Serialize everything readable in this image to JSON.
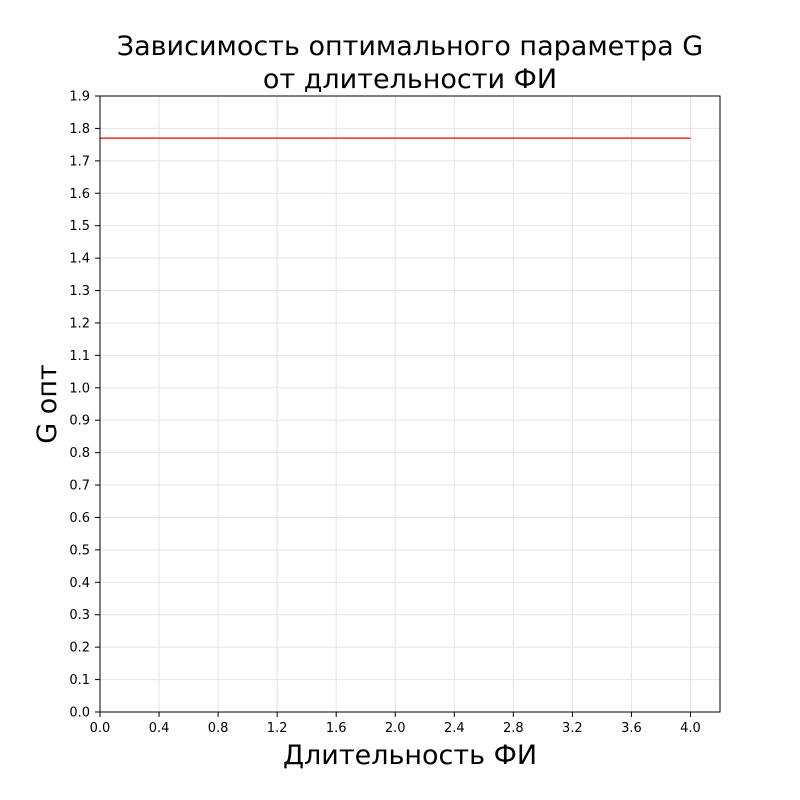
{
  "chart_data": {
    "type": "line",
    "title_lines": [
      "Зависимость оптимального параметра G",
      "от длительности ФИ"
    ],
    "xlabel": "Длительность ФИ",
    "ylabel": "G опт",
    "xlim": [
      0.0,
      4.2
    ],
    "ylim": [
      0.0,
      1.9
    ],
    "xticks": [
      0.0,
      0.4,
      0.8,
      1.2,
      1.6,
      2.0,
      2.4,
      2.8,
      3.2,
      3.6,
      4.0
    ],
    "yticks": [
      0.0,
      0.1,
      0.2,
      0.3,
      0.4,
      0.5,
      0.6,
      0.7,
      0.8,
      0.9,
      1.0,
      1.1,
      1.2,
      1.3,
      1.4,
      1.5,
      1.6,
      1.7,
      1.8,
      1.9
    ],
    "xtick_labels": [
      "0.0",
      "0.4",
      "0.8",
      "1.2",
      "1.6",
      "2.0",
      "2.4",
      "2.8",
      "3.2",
      "3.6",
      "4.0"
    ],
    "ytick_labels": [
      "0.0",
      "0.1",
      "0.2",
      "0.3",
      "0.4",
      "0.5",
      "0.6",
      "0.7",
      "0.8",
      "0.9",
      "1.0",
      "1.1",
      "1.2",
      "1.3",
      "1.4",
      "1.5",
      "1.6",
      "1.7",
      "1.8",
      "1.9"
    ],
    "grid": true,
    "legend": false,
    "series": [
      {
        "color": "#e8413a",
        "x": [
          0.0,
          4.0
        ],
        "y": [
          1.77,
          1.77
        ]
      }
    ]
  }
}
